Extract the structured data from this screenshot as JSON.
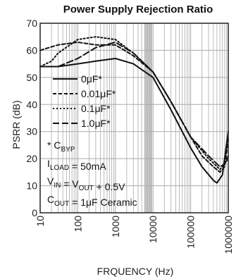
{
  "chart_data": {
    "type": "line",
    "title": "Power Supply Rejection Ratio",
    "xlabel": "FRQUENCY (Hz)",
    "ylabel": "PSRR (dB)",
    "xscale": "log",
    "xlim": [
      10,
      1000000
    ],
    "ylim": [
      0,
      70
    ],
    "grid": true,
    "legend_position": "left",
    "x_tick_labels": [
      "10",
      "100",
      "1000",
      "10000",
      "100000",
      "1000000"
    ],
    "y_tick_labels": [
      "0",
      "10",
      "20",
      "30",
      "40",
      "50",
      "60",
      "70"
    ],
    "series": [
      {
        "name": "0μF*",
        "dash": "solid",
        "x": [
          10,
          30,
          100,
          300,
          1000,
          3000,
          10000,
          30000,
          100000,
          200000,
          400000,
          500000,
          700000,
          1000000
        ],
        "y": [
          54,
          54,
          55,
          56,
          57,
          55,
          50,
          38,
          24,
          17,
          12,
          11,
          14,
          30
        ]
      },
      {
        "name": "0.01μF*",
        "dash": "dashed",
        "x": [
          10,
          30,
          100,
          300,
          1000,
          3000,
          10000,
          30000,
          100000,
          200000,
          400000,
          600000,
          800000,
          1000000
        ],
        "y": [
          60,
          62,
          63,
          62,
          62,
          58,
          52,
          41,
          28,
          21,
          17,
          15,
          17,
          27
        ]
      },
      {
        "name": "0.1μF*",
        "dash": "dotted",
        "x": [
          10,
          20,
          30,
          100,
          300,
          1000,
          3000,
          10000,
          30000,
          100000,
          300000,
          600000,
          1000000
        ],
        "y": [
          54,
          56,
          59,
          64,
          65,
          64,
          59,
          52,
          41,
          28,
          20,
          16,
          20
        ]
      },
      {
        "name": "1.0μF*",
        "dash": "longdash",
        "x": [
          10,
          30,
          100,
          300,
          1000,
          3000,
          10000,
          30000,
          100000,
          300000,
          600000,
          800000,
          1000000
        ],
        "y": [
          54,
          54,
          57,
          61,
          63,
          59,
          52,
          41,
          28,
          21,
          17,
          18,
          21
        ]
      }
    ],
    "annotations": [
      {
        "prefix": "* C",
        "sub": "BYP",
        "suffix": ""
      },
      {
        "prefix": "I",
        "sub": "LOAD",
        "suffix": " = 50mA"
      },
      {
        "prefix": "V",
        "sub": "IN",
        "middle": " = V",
        "sub2": "OUT",
        "suffix": " + 0.5V"
      },
      {
        "prefix": "C",
        "sub": "OUT",
        "suffix": " = 1μF Ceramic"
      }
    ],
    "colors": {
      "lines": "#111111",
      "grid": "#aaaaaa",
      "band": "#c8c8c8",
      "frame": "#222222"
    }
  }
}
